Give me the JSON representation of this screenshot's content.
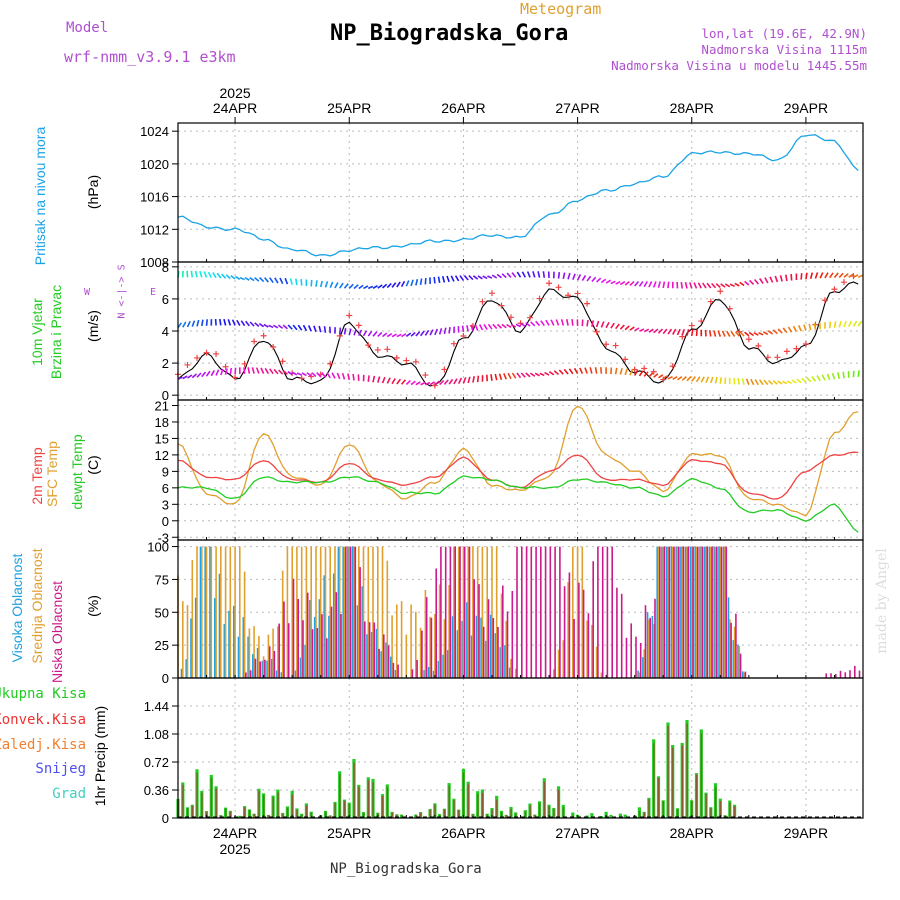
{
  "header": {
    "model_label": "Model",
    "model_name": "wrf-nmm_v3.9.1 e3km",
    "meteogram_label": "Meteogram",
    "station": "NP_Biogradska_Gora",
    "lonlat": "lon,lat (19.6E, 42.9N)",
    "elevation": "Nadmorska Visina 1115m",
    "model_elevation": "Nadmorska Visina u modelu 1445.55m",
    "footer": "NP_Biogradska_Gora",
    "credit": "made by Angel"
  },
  "time_axis": {
    "year": "2025",
    "dates": [
      "24APR",
      "25APR",
      "26APR",
      "27APR",
      "28APR",
      "29APR"
    ]
  },
  "panels": {
    "pressure": {
      "label1": "Pritisak na nivou mora",
      "unit": "(hPa)"
    },
    "wind": {
      "label1": "10m Vjetar",
      "label2": "Brzina i Pravac",
      "unit": "(m/s)",
      "compass_ns": "N <-|-> S",
      "compass_w": "W",
      "compass_e": "E"
    },
    "temp": {
      "label_t2": "2m Temp",
      "label_sfc": "SFC Temp",
      "label_dew": "dewpt Temp",
      "unit": "(C)"
    },
    "cloud": {
      "label_high": "Visoka Oblacnost",
      "label_mid": "Srednja Oblacnost",
      "label_low": "Niska Oblacnost",
      "unit": "(%)"
    },
    "precip": {
      "legend_total": "Ukupna Kisa",
      "legend_conv": "Konvek.Kisa",
      "legend_frozen": "Zaledj.Kisa",
      "legend_snow": "Snijeg",
      "legend_graupel": "Grad",
      "ylabel": "1hr Precip (mm)"
    }
  },
  "colors": {
    "pressure": "#1aa3e6",
    "t2": "#ee4444",
    "sfc": "#e0a030",
    "dew": "#22cc22",
    "high": "#20a0e0",
    "mid": "#e0a030",
    "low": "#cc1a8c",
    "precip_total": "#22cc22",
    "precip_conv": "#ee3333",
    "precip_frozen": "#f08030",
    "precip_snow": "#5050ee",
    "precip_graupel": "#40d0c0",
    "purple_text": "#b050d0",
    "orange_text": "#e0a030"
  },
  "chart_data": [
    {
      "type": "line",
      "title": "Pritisak na nivou mora",
      "ylabel": "(hPa)",
      "ylim": [
        1008,
        1025
      ],
      "yticks": [
        "1008",
        "1012",
        "1016",
        "1020",
        "1024"
      ],
      "x_hours": [
        0,
        6,
        12,
        18,
        24,
        30,
        36,
        42,
        48,
        54,
        60,
        66,
        72,
        78,
        84,
        90,
        96,
        102,
        108,
        114,
        120,
        126,
        132,
        138,
        143
      ],
      "series": [
        {
          "name": "SLP",
          "values": [
            1013.5,
            1012.3,
            1012.0,
            1010.8,
            1009.5,
            1008.8,
            1009.4,
            1009.8,
            1010.0,
            1010.6,
            1010.7,
            1011.3,
            1011.0,
            1013.8,
            1015.5,
            1016.8,
            1017.5,
            1018.5,
            1021.2,
            1021.5,
            1021.2,
            1020.5,
            1023.5,
            1022.8,
            1019.3
          ]
        }
      ]
    },
    {
      "type": "line",
      "title": "10m Vjetar Brzina i Pravac",
      "ylabel": "(m/s)",
      "ylim": [
        -0.3,
        8.3
      ],
      "yticks": [
        "0",
        "2",
        "4",
        "6",
        "8"
      ],
      "x_hours": [
        0,
        6,
        12,
        18,
        24,
        30,
        36,
        42,
        48,
        54,
        60,
        66,
        72,
        78,
        84,
        90,
        96,
        102,
        108,
        114,
        120,
        126,
        132,
        138,
        143
      ],
      "series": [
        {
          "name": "Brzina",
          "values": [
            1.0,
            2.5,
            1.0,
            3.5,
            1.0,
            0.8,
            4.5,
            2.5,
            2.0,
            0.5,
            3.5,
            6.0,
            4.0,
            6.5,
            6.0,
            3.0,
            1.5,
            0.8,
            4.0,
            6.0,
            3.0,
            2.0,
            3.0,
            6.5,
            7.0
          ]
        }
      ]
    },
    {
      "type": "line",
      "title": "2m Temp / SFC Temp / dewpt Temp",
      "ylabel": "(C)",
      "ylim": [
        -3.5,
        22
      ],
      "yticks": [
        "-3",
        "0",
        "3",
        "6",
        "9",
        "12",
        "15",
        "18",
        "21"
      ],
      "x_hours": [
        0,
        6,
        12,
        18,
        24,
        30,
        36,
        42,
        48,
        54,
        60,
        66,
        72,
        78,
        84,
        90,
        96,
        102,
        108,
        114,
        120,
        126,
        132,
        138,
        143
      ],
      "series": [
        {
          "name": "2m Temp",
          "values": [
            11,
            8,
            7.5,
            11,
            7.5,
            7,
            10.5,
            7.5,
            6.5,
            8,
            11.5,
            7.5,
            6,
            9,
            12,
            7.5,
            7.5,
            6.5,
            11,
            10.5,
            5,
            4,
            9,
            12,
            12.5
          ]
        },
        {
          "name": "SFC Temp",
          "values": [
            14,
            5,
            3,
            16,
            8,
            6.5,
            14,
            7,
            4,
            7,
            13,
            6.5,
            5.5,
            8,
            21,
            12,
            9,
            5.5,
            12,
            12,
            4,
            3,
            1,
            16,
            20
          ]
        },
        {
          "name": "dewpt Temp",
          "values": [
            6,
            6,
            4,
            8,
            7,
            7,
            8,
            7,
            5,
            5,
            8,
            7.5,
            6,
            6,
            7.5,
            7,
            6,
            4.5,
            7.5,
            6,
            1.5,
            2,
            0,
            3,
            -2
          ]
        }
      ]
    },
    {
      "type": "bar",
      "title": "Oblacnost",
      "ylabel": "(%)",
      "ylim": [
        0,
        105
      ],
      "yticks": [
        "0",
        "25",
        "50",
        "75",
        "100"
      ],
      "x_hours": [
        0,
        6,
        12,
        18,
        24,
        30,
        36,
        42,
        48,
        54,
        60,
        66,
        72,
        78,
        84,
        90,
        96,
        102,
        108,
        114,
        120,
        126,
        132,
        138,
        143
      ],
      "series": [
        {
          "name": "Visoka Oblacnost",
          "values": [
            0,
            100,
            60,
            20,
            0,
            80,
            100,
            40,
            0,
            10,
            60,
            50,
            0,
            0,
            0,
            0,
            0,
            100,
            100,
            100,
            0,
            0,
            0,
            0,
            0
          ]
        },
        {
          "name": "Srednja Oblacnost",
          "values": [
            80,
            100,
            100,
            30,
            100,
            100,
            100,
            100,
            60,
            70,
            100,
            100,
            0,
            0,
            100,
            0,
            0,
            100,
            100,
            100,
            0,
            0,
            0,
            0,
            0
          ]
        },
        {
          "name": "Niska Oblacnost",
          "values": [
            0,
            0,
            0,
            20,
            80,
            50,
            100,
            40,
            0,
            90,
            100,
            60,
            100,
            100,
            80,
            100,
            40,
            100,
            100,
            100,
            0,
            0,
            0,
            5,
            10
          ]
        }
      ]
    },
    {
      "type": "bar",
      "title": "1hr Precip",
      "ylabel": "1hr Precip (mm)",
      "ylim": [
        0,
        1.8
      ],
      "yticks": [
        "0",
        "0.36",
        "0.72",
        "1.08",
        "1.44"
      ],
      "x_hours": [
        0,
        6,
        12,
        18,
        24,
        30,
        36,
        42,
        48,
        54,
        60,
        66,
        72,
        78,
        84,
        90,
        96,
        102,
        108,
        114,
        120,
        126,
        132,
        138,
        143
      ],
      "series": [
        {
          "name": "Ukupna Kisa",
          "values": [
            0.45,
            0.7,
            0.05,
            0.45,
            0.35,
            0.05,
            0.8,
            0.6,
            0.0,
            0.2,
            0.7,
            0.3,
            0.1,
            0.55,
            0.05,
            0.08,
            0.05,
            1.35,
            1.4,
            0.4,
            0.0,
            0.0,
            0.0,
            0.0,
            0.0
          ]
        },
        {
          "name": "Konvek.Kisa",
          "values": [
            0.42,
            0.65,
            0.04,
            0.42,
            0.3,
            0.04,
            0.75,
            0.55,
            0.0,
            0.18,
            0.65,
            0.25,
            0.08,
            0.5,
            0.0,
            0.0,
            0.0,
            1.3,
            1.35,
            0.35,
            0.0,
            0.0,
            0.0,
            0.0,
            0.0
          ]
        }
      ]
    }
  ]
}
